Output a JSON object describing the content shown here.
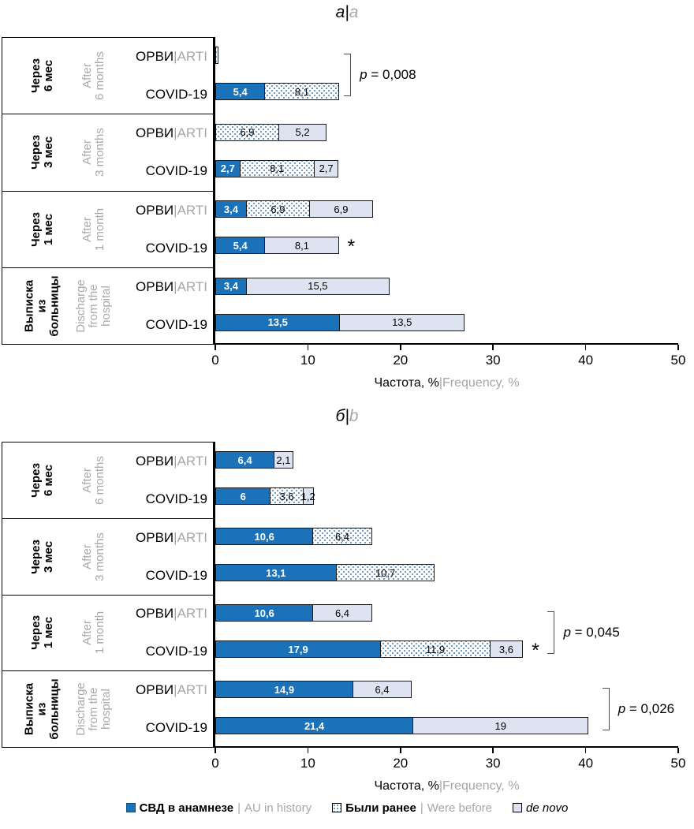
{
  "chart_data": {
    "type": "bar",
    "orientation": "horizontal",
    "stacked": true,
    "axis": {
      "xlim": [
        0,
        50
      ],
      "ticks": [
        "0",
        "10",
        "20",
        "30",
        "40",
        "50"
      ],
      "xlabel_ru": "Частота, %",
      "xlabel_sep": "|",
      "xlabel_en": "Frequency, %",
      "grid": false
    },
    "colors": {
      "history_fill": "#1B72B8",
      "denovo_fill": "#DDE3F0",
      "before_dot_color": "#6B95BB",
      "secondary_text": "#A6A6A6",
      "axis_color": "#000000"
    },
    "legend": [
      {
        "type": "history",
        "label_ru": "СВД в анамнезе",
        "sep": "|",
        "label_en": "AU in history",
        "italic": false
      },
      {
        "type": "before",
        "label_ru": "Были ранее",
        "sep": "|",
        "label_en": "Were before",
        "italic": false
      },
      {
        "type": "denovo",
        "label_ru": "de novo",
        "sep": "",
        "label_en": "",
        "italic": true
      }
    ],
    "panels": [
      {
        "title_ru": "а",
        "title_sep": "|",
        "title_en": "a",
        "groups": [
          {
            "period_ru": "Через\n6 мес",
            "period_en": "After\n6 months",
            "rows": [
              {
                "label_ru": "ОРВИ",
                "label_sep": "|",
                "label_en": "ARTI",
                "star": false,
                "segments": [
                  {
                    "type": "before",
                    "value": 0.3,
                    "label": ""
                  }
                ]
              },
              {
                "label_ru": "COVID-19",
                "label_sep": "",
                "label_en": "",
                "star": false,
                "segments": [
                  {
                    "type": "history",
                    "value": 5.4,
                    "label": "5,4"
                  },
                  {
                    "type": "before",
                    "value": 8.1,
                    "label": "8,1"
                  }
                ]
              }
            ],
            "annotation": {
              "p_label": "p = 0,008",
              "bracket_x": 13.9
            }
          },
          {
            "period_ru": "Через\n3 мес",
            "period_en": "After\n3 months",
            "rows": [
              {
                "label_ru": "ОРВИ",
                "label_sep": "|",
                "label_en": "ARTI",
                "star": false,
                "segments": [
                  {
                    "type": "before",
                    "value": 6.9,
                    "label": "6,9"
                  },
                  {
                    "type": "denovo",
                    "value": 5.2,
                    "label": "5,2"
                  }
                ]
              },
              {
                "label_ru": "COVID-19",
                "label_sep": "",
                "label_en": "",
                "star": false,
                "segments": [
                  {
                    "type": "history",
                    "value": 2.7,
                    "label": "2,7"
                  },
                  {
                    "type": "before",
                    "value": 8.1,
                    "label": "8,1"
                  },
                  {
                    "type": "denovo",
                    "value": 2.7,
                    "label": "2,7"
                  }
                ]
              }
            ],
            "annotation": null
          },
          {
            "period_ru": "Через\n1 мес",
            "period_en": "After\n1 month",
            "rows": [
              {
                "label_ru": "ОРВИ",
                "label_sep": "|",
                "label_en": "ARTI",
                "star": false,
                "segments": [
                  {
                    "type": "history",
                    "value": 3.4,
                    "label": "3,4"
                  },
                  {
                    "type": "before",
                    "value": 6.9,
                    "label": "6,9"
                  },
                  {
                    "type": "denovo",
                    "value": 6.9,
                    "label": "6,9"
                  }
                ]
              },
              {
                "label_ru": "COVID-19",
                "label_sep": "",
                "label_en": "",
                "star": true,
                "segments": [
                  {
                    "type": "history",
                    "value": 5.4,
                    "label": "5,4"
                  },
                  {
                    "type": "denovo",
                    "value": 8.1,
                    "label": "8,1"
                  }
                ]
              }
            ],
            "annotation": null
          },
          {
            "period_ru": "Выписка\nиз\nбольницы",
            "period_en": "Discharge\nfrom the\nhospital",
            "rows": [
              {
                "label_ru": "ОРВИ",
                "label_sep": "|",
                "label_en": "ARTI",
                "star": false,
                "segments": [
                  {
                    "type": "history",
                    "value": 3.4,
                    "label": "3,4"
                  },
                  {
                    "type": "denovo",
                    "value": 15.5,
                    "label": "15,5"
                  }
                ]
              },
              {
                "label_ru": "COVID-19",
                "label_sep": "",
                "label_en": "",
                "star": false,
                "segments": [
                  {
                    "type": "history",
                    "value": 13.5,
                    "label": "13,5"
                  },
                  {
                    "type": "denovo",
                    "value": 13.5,
                    "label": "13,5"
                  }
                ]
              }
            ],
            "annotation": null
          }
        ]
      },
      {
        "title_ru": "б",
        "title_sep": "|",
        "title_en": "b",
        "groups": [
          {
            "period_ru": "Через\n6 мес",
            "period_en": "After\n6 months",
            "rows": [
              {
                "label_ru": "ОРВИ",
                "label_sep": "|",
                "label_en": "ARTI",
                "star": false,
                "segments": [
                  {
                    "type": "history",
                    "value": 6.4,
                    "label": "6,4"
                  },
                  {
                    "type": "denovo",
                    "value": 2.1,
                    "label": "2,1"
                  }
                ]
              },
              {
                "label_ru": "COVID-19",
                "label_sep": "",
                "label_en": "",
                "star": false,
                "segments": [
                  {
                    "type": "history",
                    "value": 6,
                    "label": "6"
                  },
                  {
                    "type": "before",
                    "value": 3.6,
                    "label": "3,6"
                  },
                  {
                    "type": "denovo",
                    "value": 1.2,
                    "label": "1,2"
                  }
                ]
              }
            ],
            "annotation": null
          },
          {
            "period_ru": "Через\n3 мес",
            "period_en": "After\n3 months",
            "rows": [
              {
                "label_ru": "ОРВИ",
                "label_sep": "|",
                "label_en": "ARTI",
                "star": false,
                "segments": [
                  {
                    "type": "history",
                    "value": 10.6,
                    "label": "10,6"
                  },
                  {
                    "type": "before",
                    "value": 6.4,
                    "label": "6,4"
                  }
                ]
              },
              {
                "label_ru": "COVID-19",
                "label_sep": "",
                "label_en": "",
                "star": false,
                "segments": [
                  {
                    "type": "history",
                    "value": 13.1,
                    "label": "13,1"
                  },
                  {
                    "type": "before",
                    "value": 10.7,
                    "label": "10,7"
                  }
                ]
              }
            ],
            "annotation": null
          },
          {
            "period_ru": "Через\n1 мес",
            "period_en": "After\n1 month",
            "rows": [
              {
                "label_ru": "ОРВИ",
                "label_sep": "|",
                "label_en": "ARTI",
                "star": false,
                "segments": [
                  {
                    "type": "history",
                    "value": 10.6,
                    "label": "10,6"
                  },
                  {
                    "type": "denovo",
                    "value": 6.4,
                    "label": "6,4"
                  }
                ]
              },
              {
                "label_ru": "COVID-19",
                "label_sep": "",
                "label_en": "",
                "star": true,
                "segments": [
                  {
                    "type": "history",
                    "value": 17.9,
                    "label": "17,9"
                  },
                  {
                    "type": "before",
                    "value": 11.9,
                    "label": "11,9"
                  },
                  {
                    "type": "denovo",
                    "value": 3.6,
                    "label": "3,6"
                  }
                ]
              }
            ],
            "annotation": {
              "p_label": "p = 0,045",
              "bracket_x": 35.9
            }
          },
          {
            "period_ru": "Выписка\nиз\nбольницы",
            "period_en": "Discharge\nfrom the\nhospital",
            "rows": [
              {
                "label_ru": "ОРВИ",
                "label_sep": "|",
                "label_en": "ARTI",
                "star": false,
                "segments": [
                  {
                    "type": "history",
                    "value": 14.9,
                    "label": "14,9"
                  },
                  {
                    "type": "denovo",
                    "value": 6.4,
                    "label": "6,4"
                  }
                ]
              },
              {
                "label_ru": "COVID-19",
                "label_sep": "",
                "label_en": "",
                "star": false,
                "segments": [
                  {
                    "type": "history",
                    "value": 21.4,
                    "label": "21,4"
                  },
                  {
                    "type": "denovo",
                    "value": 19,
                    "label": "19"
                  }
                ]
              }
            ],
            "annotation": {
              "p_label": "p = 0,026",
              "bracket_x": 41.8
            }
          }
        ]
      }
    ]
  }
}
